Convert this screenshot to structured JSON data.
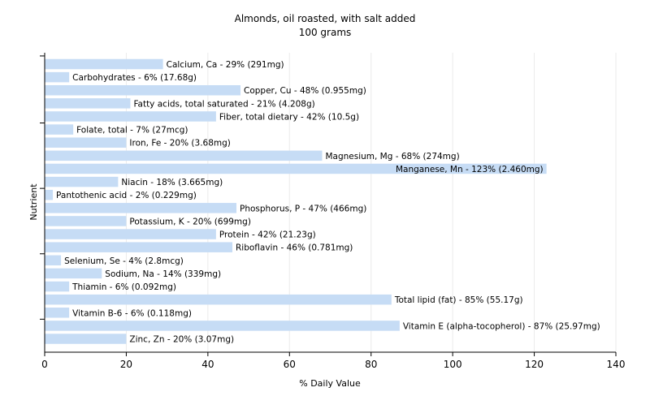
{
  "chart_data": {
    "type": "bar",
    "orientation": "horizontal",
    "title": "Almonds, oil roasted, with salt added",
    "subtitle": "100 grams",
    "xlabel": "% Daily Value",
    "ylabel": "Nutrient",
    "xlim": [
      0,
      140
    ],
    "xticks": [
      "0",
      "20",
      "40",
      "60",
      "80",
      "100",
      "120",
      "140"
    ],
    "grid": true,
    "bar_color": "#c6dcf5",
    "gridline_color": "#ebebeb",
    "categories": [
      "Calcium, Ca",
      "Carbohydrates",
      "Copper, Cu",
      "Fatty acids, total saturated",
      "Fiber, total dietary",
      "Folate, total",
      "Iron, Fe",
      "Magnesium, Mg",
      "Manganese, Mn",
      "Niacin",
      "Pantothenic acid",
      "Phosphorus, P",
      "Potassium, K",
      "Protein",
      "Riboflavin",
      "Selenium, Se",
      "Sodium, Na",
      "Thiamin",
      "Total lipid (fat)",
      "Vitamin B-6",
      "Vitamin E (alpha-tocopherol)",
      "Zinc, Zn"
    ],
    "values": [
      29,
      6,
      48,
      21,
      42,
      7,
      20,
      68,
      123,
      18,
      2,
      47,
      20,
      42,
      46,
      4,
      14,
      6,
      85,
      6,
      87,
      20
    ],
    "bar_labels": [
      "Calcium, Ca - 29% (291mg)",
      "Carbohydrates - 6% (17.68g)",
      "Copper, Cu - 48% (0.955mg)",
      "Fatty acids, total saturated - 21% (4.208g)",
      "Fiber, total dietary - 42% (10.5g)",
      "Folate, total - 7% (27mcg)",
      "Iron, Fe - 20% (3.68mg)",
      "Magnesium, Mg - 68% (274mg)",
      "Manganese, Mn - 123% (2.460mg)",
      "Niacin - 18% (3.665mg)",
      "Pantothenic acid - 2% (0.229mg)",
      "Phosphorus, P - 47% (466mg)",
      "Potassium, K - 20% (699mg)",
      "Protein - 42% (21.23g)",
      "Riboflavin - 46% (0.781mg)",
      "Selenium, Se - 4% (2.8mcg)",
      "Sodium, Na - 14% (339mg)",
      "Thiamin - 6% (0.092mg)",
      "Total lipid (fat) - 85% (55.17g)",
      "Vitamin B-6 - 6% (0.118mg)",
      "Vitamin E (alpha-tocopherol) - 87% (25.97mg)",
      "Zinc, Zn - 20% (3.07mg)"
    ]
  }
}
